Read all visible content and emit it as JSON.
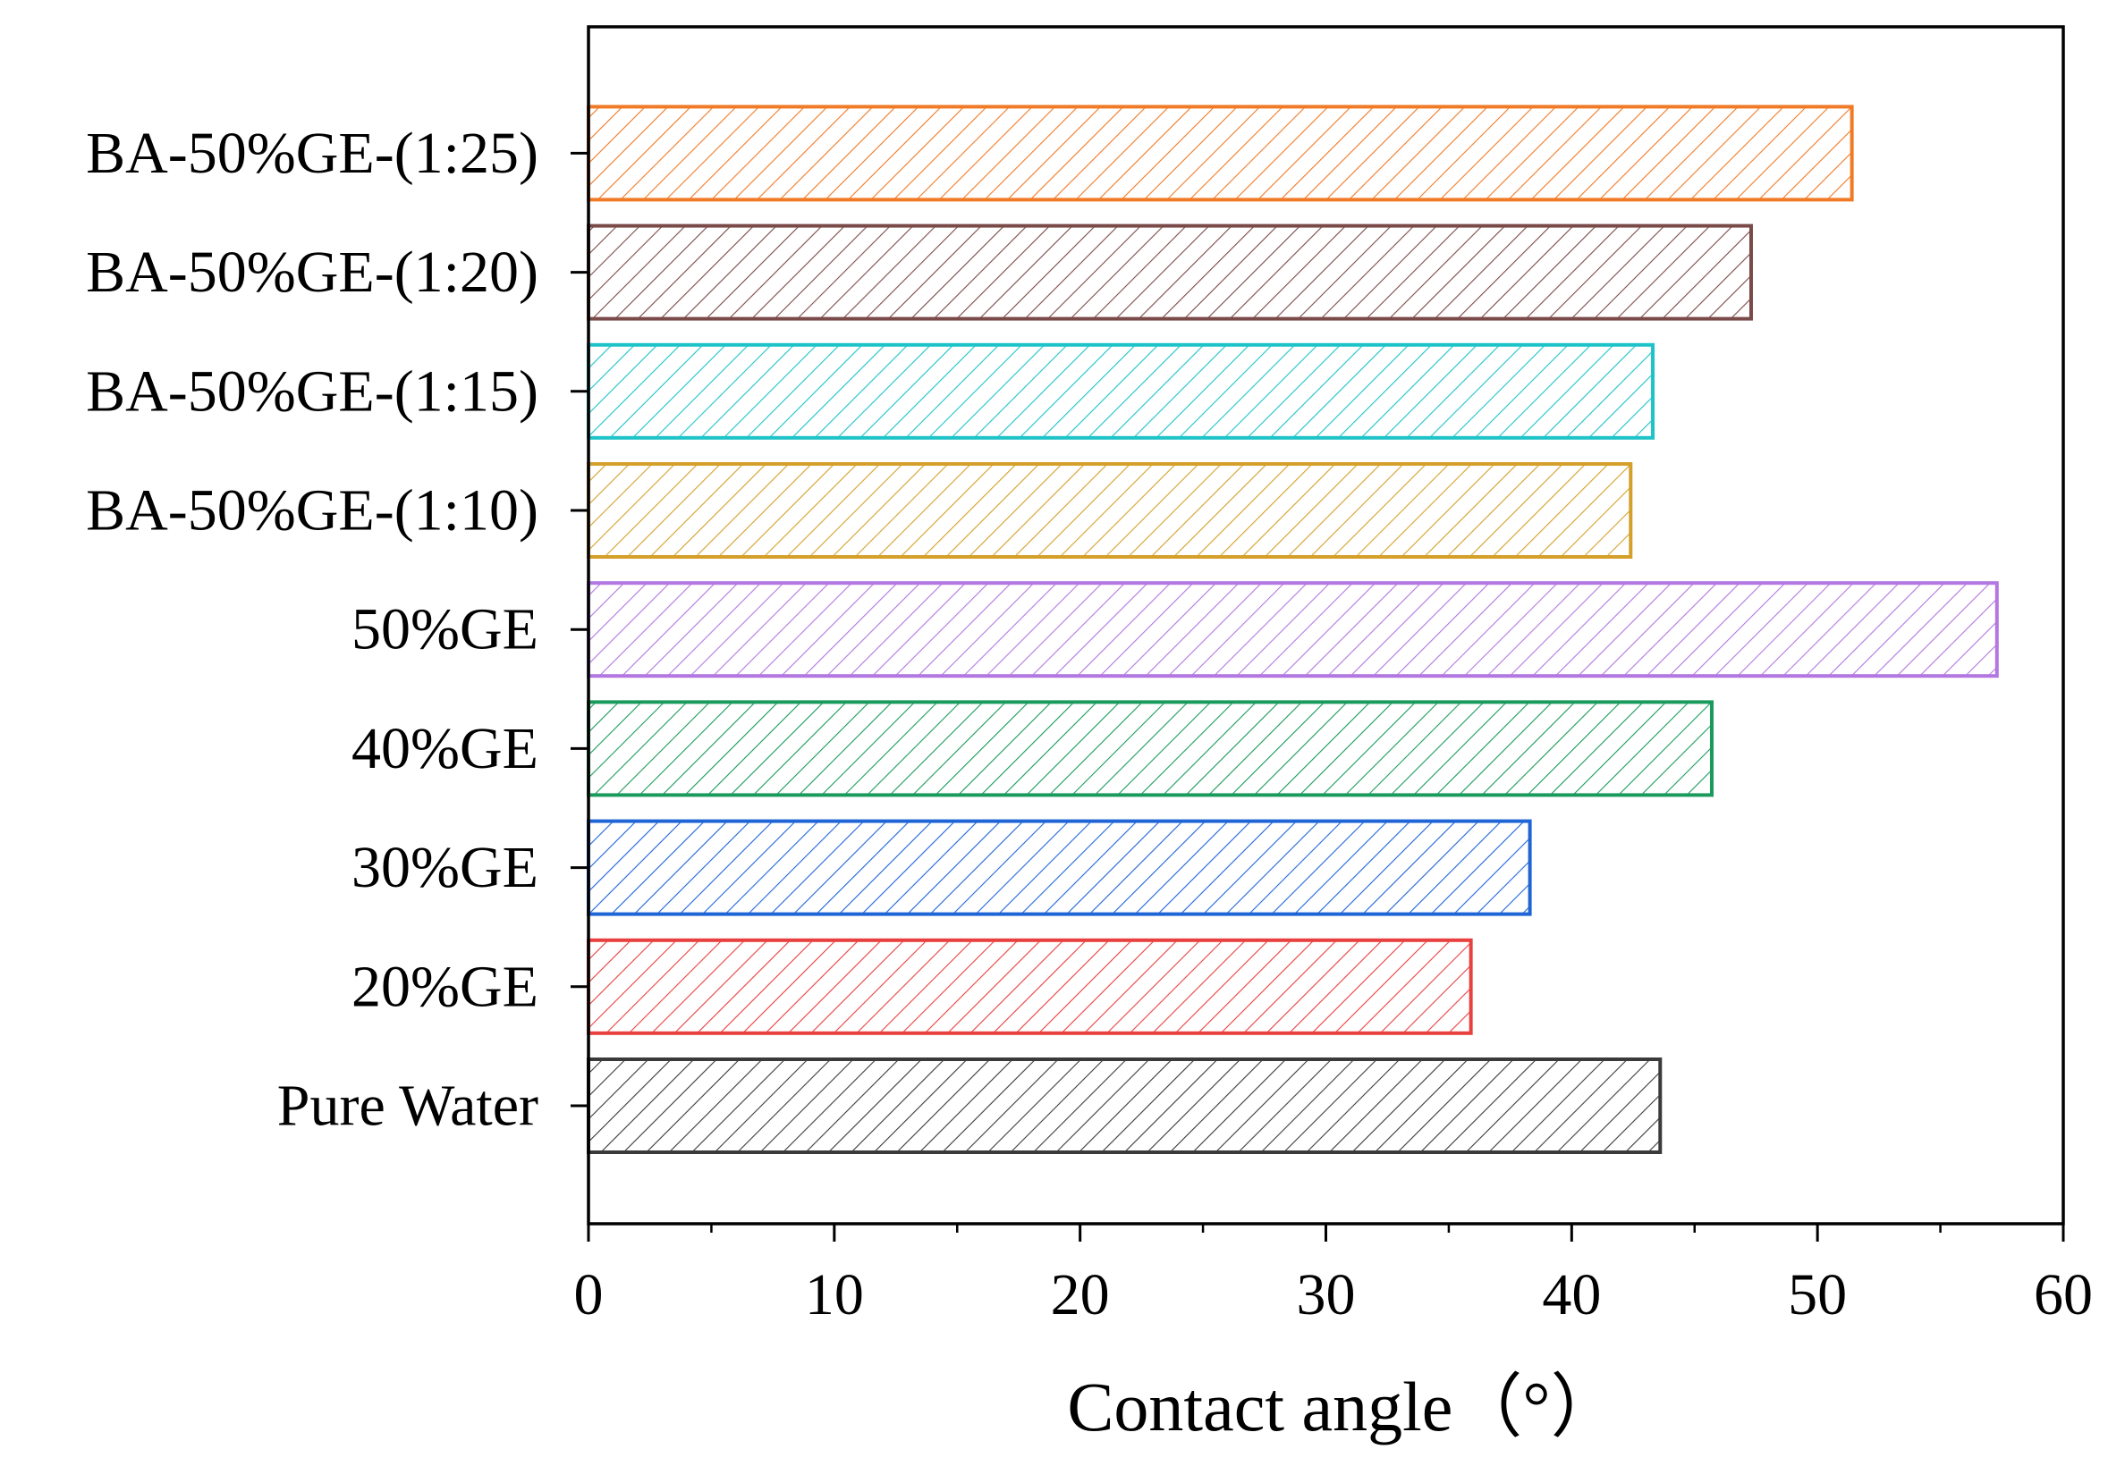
{
  "chart_data": {
    "type": "bar",
    "orientation": "horizontal",
    "title": "",
    "xlabel": "Contact angle（°）",
    "ylabel": "",
    "xlim": [
      0,
      60
    ],
    "xticks": [
      0,
      10,
      20,
      30,
      40,
      50,
      60
    ],
    "grid": false,
    "legend": "none",
    "fill_pattern": "diagonal-hatch",
    "categories": [
      "Pure Water",
      "20%GE",
      "30%GE",
      "40%GE",
      "50%GE",
      "BA-50%GE-(1:10)",
      "BA-50%GE-(1:15)",
      "BA-50%GE-(1:20)",
      "BA-50%GE-(1:25)"
    ],
    "values": [
      43.6,
      35.9,
      38.3,
      45.7,
      57.3,
      42.4,
      43.3,
      47.3,
      51.4
    ],
    "colors": [
      "#3a3a3a",
      "#e8403f",
      "#1f65d6",
      "#1a9a5c",
      "#b277e0",
      "#d4a02a",
      "#1ec3c8",
      "#7a4a48",
      "#f07a25"
    ]
  }
}
